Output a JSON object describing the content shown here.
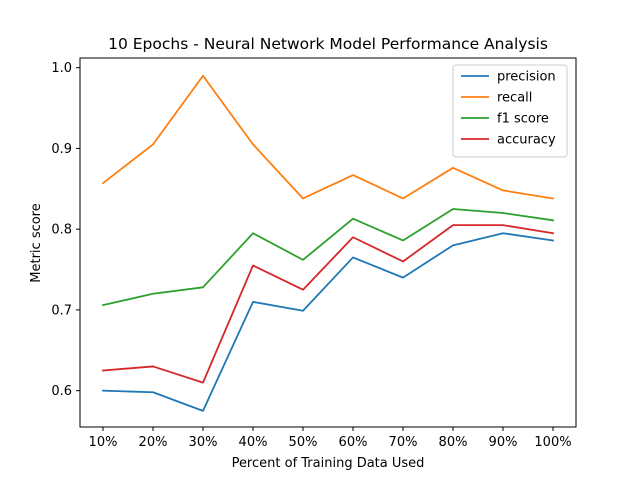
{
  "chart_data": {
    "type": "line",
    "title": "10 Epochs - Neural Network Model Performance Analysis",
    "xlabel": "Percent of Training Data Used",
    "ylabel": "Metric score",
    "categories": [
      "10%",
      "20%",
      "30%",
      "40%",
      "50%",
      "60%",
      "70%",
      "80%",
      "90%",
      "100%"
    ],
    "ylim": [
      0.555,
      1.012
    ],
    "yticks": [
      0.6,
      0.7,
      0.8,
      0.9,
      1.0
    ],
    "ytick_labels": [
      "0.6",
      "0.7",
      "0.8",
      "0.9",
      "1.0"
    ],
    "grid": false,
    "legend_position": "top-right",
    "series": [
      {
        "name": "precision",
        "color": "#1f77b4",
        "values": [
          0.6,
          0.598,
          0.575,
          0.71,
          0.699,
          0.765,
          0.74,
          0.78,
          0.795,
          0.786
        ]
      },
      {
        "name": "recall",
        "color": "#ff7f0e",
        "values": [
          0.857,
          0.905,
          0.99,
          0.905,
          0.838,
          0.867,
          0.838,
          0.876,
          0.848,
          0.838
        ]
      },
      {
        "name": "f1 score",
        "color": "#2ca02c",
        "values": [
          0.706,
          0.72,
          0.728,
          0.795,
          0.762,
          0.813,
          0.786,
          0.825,
          0.82,
          0.811
        ]
      },
      {
        "name": "accuracy",
        "color": "#d62728",
        "values": [
          0.625,
          0.63,
          0.61,
          0.755,
          0.725,
          0.79,
          0.76,
          0.805,
          0.805,
          0.795
        ]
      }
    ]
  }
}
